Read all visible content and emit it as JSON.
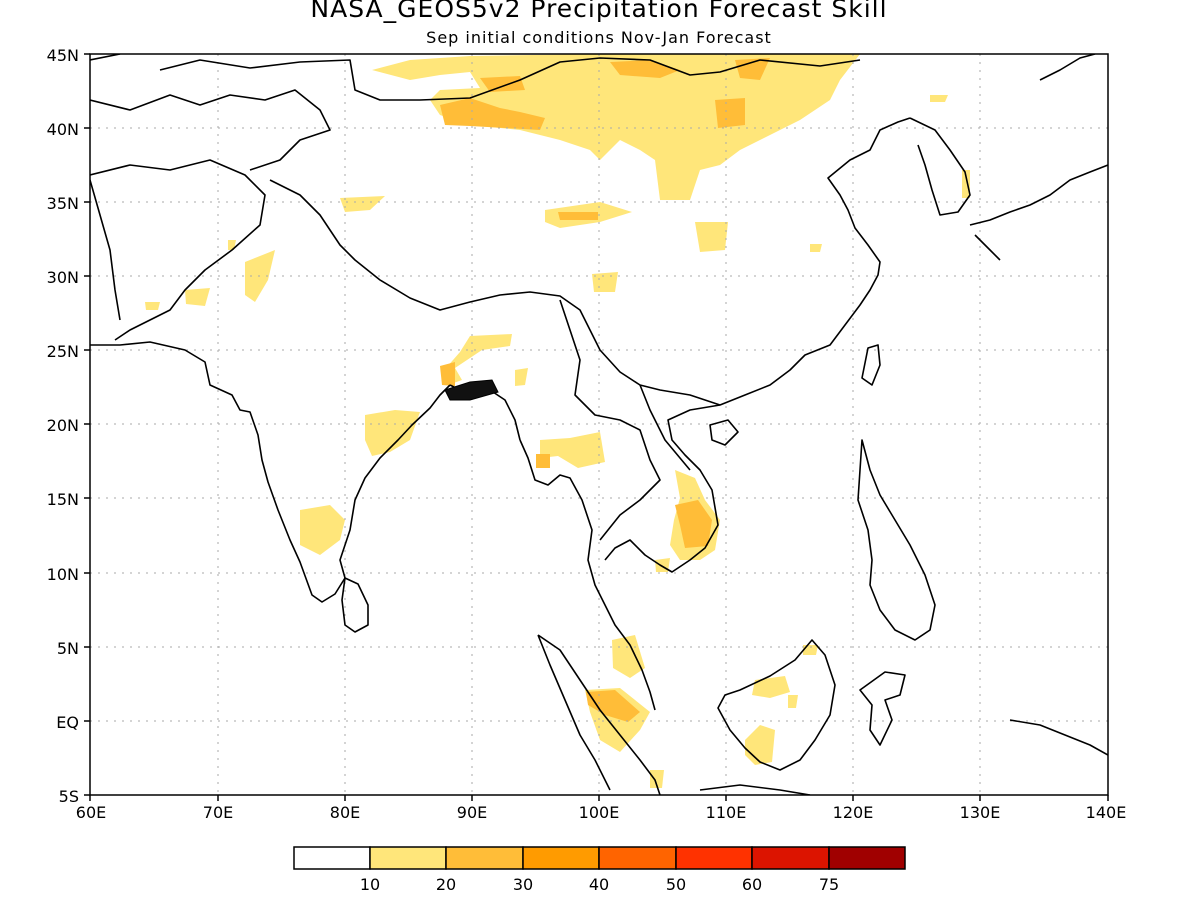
{
  "title": "NASA_GEOS5v2 Precipitation Forecast Skill",
  "subtitle": "Sep initial conditions  Nov-Jan Forecast",
  "map": {
    "lon_range": [
      60,
      140
    ],
    "lat_range": [
      -5,
      45
    ],
    "lon_labels": [
      "60E",
      "70E",
      "80E",
      "90E",
      "100E",
      "110E",
      "120E",
      "130E",
      "140E"
    ],
    "lat_labels": [
      "45N",
      "40N",
      "35N",
      "30N",
      "25N",
      "20N",
      "15N",
      "10N",
      "5N",
      "EQ",
      "5S"
    ],
    "grid": "dotted"
  },
  "legend": {
    "colors": [
      "#ffffff",
      "#ffe67a",
      "#ffbd38",
      "#ff9b00",
      "#ff6400",
      "#ff3200",
      "#dc1400",
      "#a00000"
    ],
    "labels": [
      "10",
      "20",
      "30",
      "40",
      "50",
      "60",
      "75"
    ]
  }
}
